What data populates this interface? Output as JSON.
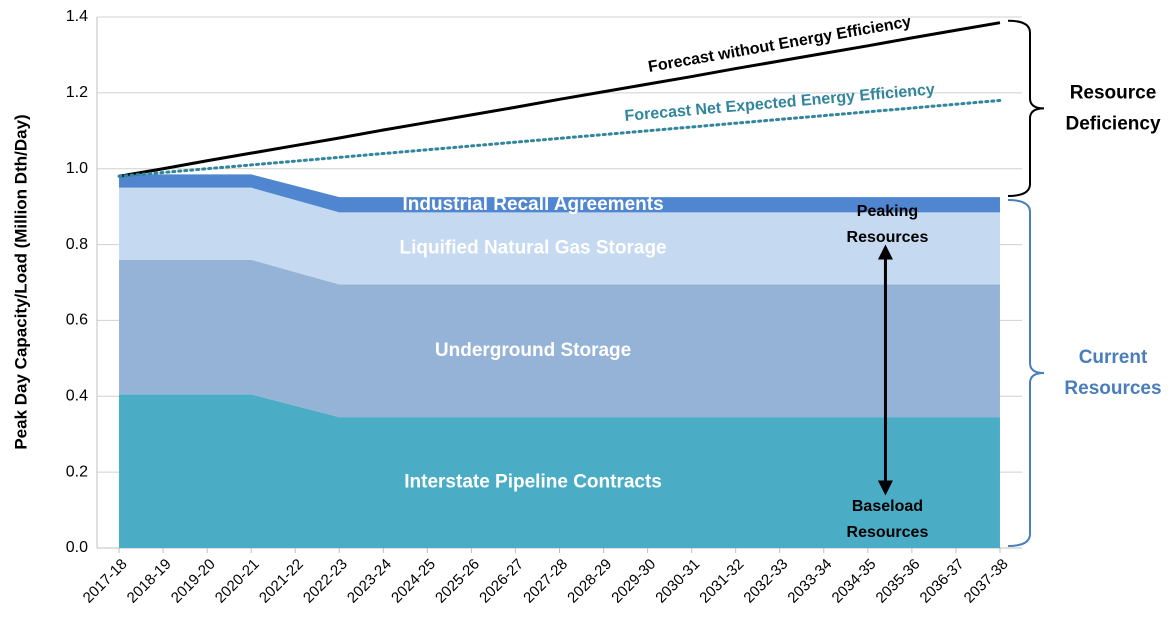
{
  "chart_data": {
    "type": "stacked-area",
    "y_label": "Peak Day Capacity/Load (Million Dth/Day)",
    "categories": [
      "2017-18",
      "2018-19",
      "2019-20",
      "2020-21",
      "2021-22",
      "2022-23",
      "2023-24",
      "2024-25",
      "2025-26",
      "2026-27",
      "2027-28",
      "2028-29",
      "2029-30",
      "2030-31",
      "2031-32",
      "2032-33",
      "2033-34",
      "2034-35",
      "2035-36",
      "2036-37",
      "2037-38"
    ],
    "ylim": [
      0,
      1.4
    ],
    "yticks": [
      {
        "value": 0,
        "label": "0.0"
      },
      0.2,
      0.4,
      0.6,
      0.8,
      {
        "value": 1,
        "label": "1.0"
      },
      1.2,
      1.4
    ],
    "grid": true,
    "series": [
      {
        "name": "Interstate Pipeline Contracts",
        "color": "#4bacc6",
        "values": [
          0.405,
          0.405,
          0.405,
          0.405,
          0.375,
          0.345,
          0.345,
          0.345,
          0.345,
          0.345,
          0.345,
          0.345,
          0.345,
          0.345,
          0.345,
          0.345,
          0.345,
          0.345,
          0.345,
          0.345,
          0.345
        ]
      },
      {
        "name": "Underground Storage",
        "color": "#95b3d7",
        "values": [
          0.355,
          0.355,
          0.355,
          0.355,
          0.3525,
          0.35,
          0.35,
          0.35,
          0.35,
          0.35,
          0.35,
          0.35,
          0.35,
          0.35,
          0.35,
          0.35,
          0.35,
          0.35,
          0.35,
          0.35,
          0.35
        ]
      },
      {
        "name": "Liquified Natural Gas Storage",
        "color": "#c5d9f1",
        "values": [
          0.19,
          0.19,
          0.19,
          0.19,
          0.19,
          0.19,
          0.19,
          0.19,
          0.19,
          0.19,
          0.19,
          0.19,
          0.19,
          0.19,
          0.19,
          0.19,
          0.19,
          0.19,
          0.19,
          0.19,
          0.19
        ]
      },
      {
        "name": "Industrial Recall Agreements",
        "color": "#4f86cf",
        "values": [
          0.035,
          0.035,
          0.035,
          0.035,
          0.0375,
          0.04,
          0.04,
          0.04,
          0.04,
          0.04,
          0.04,
          0.04,
          0.04,
          0.04,
          0.04,
          0.04,
          0.04,
          0.04,
          0.04,
          0.04,
          0.04
        ]
      }
    ],
    "lines": [
      {
        "name": "Forecast without Energy Efficiency",
        "color": "#000000",
        "dashed": false,
        "values": [
          0.98,
          1.0,
          1.021,
          1.041,
          1.061,
          1.081,
          1.102,
          1.122,
          1.142,
          1.162,
          1.183,
          1.203,
          1.223,
          1.243,
          1.264,
          1.284,
          1.304,
          1.324,
          1.345,
          1.365,
          1.385
        ]
      },
      {
        "name": "Forecast Net Expected Energy Efficiency",
        "color": "#31859c",
        "dashed": true,
        "values": [
          0.98,
          0.99,
          1.0,
          1.01,
          1.02,
          1.03,
          1.04,
          1.05,
          1.06,
          1.07,
          1.08,
          1.09,
          1.1,
          1.11,
          1.12,
          1.13,
          1.14,
          1.15,
          1.16,
          1.17,
          1.18
        ]
      }
    ],
    "annotations": [
      {
        "text": [
          "Peaking",
          "Resources"
        ]
      },
      {
        "text": [
          "Baseload",
          "Resources"
        ]
      }
    ],
    "brackets": [
      {
        "text": [
          "Resource",
          "Deficiency"
        ],
        "color": "#000000"
      },
      {
        "text": [
          "Current",
          "Resources"
        ],
        "color": "#4a7ebb"
      }
    ]
  }
}
